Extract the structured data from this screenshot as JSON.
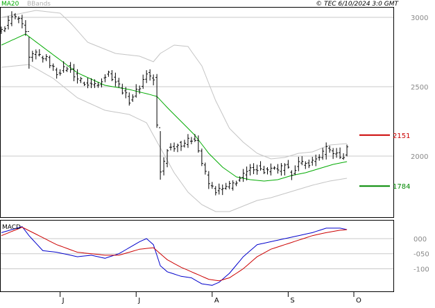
{
  "header": {
    "ma_label": "MA20",
    "bbands_label": "BBands",
    "copyright": "© TEC 6/10/2024 3:0 GMT"
  },
  "colors": {
    "ma": "#00aa00",
    "bbands": "#c4c4c4",
    "price": "#000000",
    "macd": "#0000cc",
    "signal": "#cc0000",
    "grid": "#c8c8c8",
    "resistance": "#cc0000",
    "support": "#008800",
    "frame": "#000000"
  },
  "chart_data": [
    {
      "type": "ohlc",
      "title": "",
      "y_ticks": [
        2000,
        2500,
        3000
      ],
      "y_tick_labels": [
        "2000",
        "2500",
        "3000"
      ],
      "ylim": [
        1560,
        3070
      ],
      "x_months": [
        "J",
        "J",
        "A",
        "S",
        "O"
      ],
      "x_month_positions": [
        17,
        39,
        61,
        83,
        102
      ],
      "n_bars": 104,
      "levels": [
        {
          "name": "resistance",
          "value": 2151,
          "label": "2151"
        },
        {
          "name": "support",
          "value": 1784,
          "label": "1784"
        }
      ],
      "close_anchors": [
        [
          0,
          2900
        ],
        [
          3,
          3000
        ],
        [
          5,
          2990
        ],
        [
          7,
          2880
        ],
        [
          8,
          2700
        ],
        [
          10,
          2740
        ],
        [
          13,
          2700
        ],
        [
          16,
          2600
        ],
        [
          19,
          2640
        ],
        [
          22,
          2560
        ],
        [
          25,
          2510
        ],
        [
          28,
          2530
        ],
        [
          31,
          2600
        ],
        [
          34,
          2510
        ],
        [
          37,
          2400
        ],
        [
          40,
          2500
        ],
        [
          42,
          2600
        ],
        [
          44,
          2550
        ],
        [
          46,
          1880
        ],
        [
          48,
          2050
        ],
        [
          51,
          2080
        ],
        [
          53,
          2100
        ],
        [
          56,
          2130
        ],
        [
          58,
          1950
        ],
        [
          60,
          1800
        ],
        [
          62,
          1750
        ],
        [
          64,
          1760
        ],
        [
          67,
          1800
        ],
        [
          70,
          1860
        ],
        [
          73,
          1920
        ],
        [
          76,
          1890
        ],
        [
          79,
          1900
        ],
        [
          82,
          1920
        ],
        [
          84,
          1880
        ],
        [
          86,
          1950
        ],
        [
          88,
          1940
        ],
        [
          90,
          1960
        ],
        [
          92,
          2000
        ],
        [
          94,
          2050
        ],
        [
          96,
          2030
        ],
        [
          98,
          1990
        ],
        [
          99,
          2000
        ],
        [
          100,
          2050
        ]
      ],
      "ma20_anchors": [
        [
          0,
          2800
        ],
        [
          7,
          2880
        ],
        [
          15,
          2730
        ],
        [
          22,
          2600
        ],
        [
          30,
          2510
        ],
        [
          37,
          2480
        ],
        [
          42,
          2450
        ],
        [
          45,
          2430
        ],
        [
          48,
          2350
        ],
        [
          52,
          2250
        ],
        [
          56,
          2150
        ],
        [
          60,
          2020
        ],
        [
          64,
          1920
        ],
        [
          68,
          1850
        ],
        [
          72,
          1830
        ],
        [
          76,
          1820
        ],
        [
          80,
          1830
        ],
        [
          84,
          1860
        ],
        [
          88,
          1880
        ],
        [
          92,
          1910
        ],
        [
          96,
          1940
        ],
        [
          100,
          1960
        ]
      ],
      "bb_upper_anchors": [
        [
          0,
          3000
        ],
        [
          10,
          3050
        ],
        [
          17,
          3030
        ],
        [
          20,
          2960
        ],
        [
          25,
          2820
        ],
        [
          33,
          2740
        ],
        [
          40,
          2720
        ],
        [
          44,
          2680
        ],
        [
          46,
          2740
        ],
        [
          50,
          2800
        ],
        [
          54,
          2790
        ],
        [
          58,
          2650
        ],
        [
          62,
          2400
        ],
        [
          66,
          2200
        ],
        [
          70,
          2100
        ],
        [
          74,
          2020
        ],
        [
          78,
          1980
        ],
        [
          82,
          1990
        ],
        [
          86,
          2020
        ],
        [
          90,
          2030
        ],
        [
          95,
          2080
        ],
        [
          100,
          2090
        ]
      ],
      "bb_lower_anchors": [
        [
          0,
          2640
        ],
        [
          8,
          2660
        ],
        [
          15,
          2560
        ],
        [
          22,
          2420
        ],
        [
          30,
          2330
        ],
        [
          37,
          2300
        ],
        [
          42,
          2240
        ],
        [
          46,
          2060
        ],
        [
          50,
          1880
        ],
        [
          54,
          1740
        ],
        [
          58,
          1650
        ],
        [
          62,
          1600
        ],
        [
          66,
          1600
        ],
        [
          70,
          1640
        ],
        [
          74,
          1680
        ],
        [
          78,
          1700
        ],
        [
          82,
          1730
        ],
        [
          86,
          1760
        ],
        [
          90,
          1790
        ],
        [
          95,
          1820
        ],
        [
          100,
          1840
        ]
      ]
    },
    {
      "type": "line",
      "title": "MACD",
      "y_ticks": [
        0,
        -50,
        -100
      ],
      "y_tick_labels": [
        "000",
        "-050",
        "-100"
      ],
      "ylim": [
        -175,
        60
      ],
      "series": [
        {
          "role": "macd",
          "anchors": [
            [
              0,
              20
            ],
            [
              6,
              40
            ],
            [
              8,
              10
            ],
            [
              12,
              -40
            ],
            [
              16,
              -45
            ],
            [
              22,
              -60
            ],
            [
              26,
              -55
            ],
            [
              30,
              -65
            ],
            [
              34,
              -50
            ],
            [
              40,
              -10
            ],
            [
              42,
              0
            ],
            [
              44,
              -20
            ],
            [
              46,
              -90
            ],
            [
              48,
              -110
            ],
            [
              52,
              -125
            ],
            [
              55,
              -130
            ],
            [
              58,
              -150
            ],
            [
              61,
              -155
            ],
            [
              63,
              -145
            ],
            [
              66,
              -115
            ],
            [
              70,
              -60
            ],
            [
              74,
              -20
            ],
            [
              78,
              -10
            ],
            [
              82,
              0
            ],
            [
              86,
              10
            ],
            [
              90,
              20
            ],
            [
              94,
              35
            ],
            [
              98,
              35
            ],
            [
              100,
              30
            ]
          ]
        },
        {
          "role": "signal",
          "anchors": [
            [
              0,
              10
            ],
            [
              6,
              38
            ],
            [
              10,
              15
            ],
            [
              16,
              -20
            ],
            [
              22,
              -45
            ],
            [
              26,
              -50
            ],
            [
              30,
              -55
            ],
            [
              34,
              -55
            ],
            [
              40,
              -35
            ],
            [
              44,
              -30
            ],
            [
              48,
              -70
            ],
            [
              52,
              -95
            ],
            [
              56,
              -115
            ],
            [
              60,
              -135
            ],
            [
              63,
              -140
            ],
            [
              66,
              -130
            ],
            [
              70,
              -100
            ],
            [
              74,
              -60
            ],
            [
              78,
              -35
            ],
            [
              82,
              -20
            ],
            [
              86,
              -5
            ],
            [
              90,
              10
            ],
            [
              94,
              20
            ],
            [
              98,
              28
            ],
            [
              100,
              30
            ]
          ]
        }
      ]
    }
  ]
}
